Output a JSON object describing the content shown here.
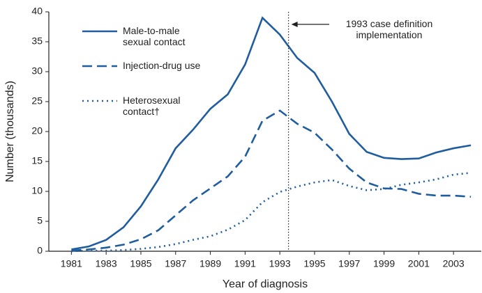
{
  "chart_data": {
    "type": "line",
    "x_label": "Year of diagnosis",
    "y_label": "Number (thousands)",
    "x": [
      1981,
      1982,
      1983,
      1984,
      1985,
      1986,
      1987,
      1988,
      1989,
      1990,
      1991,
      1992,
      1993,
      1994,
      1995,
      1996,
      1997,
      1998,
      1999,
      2000,
      2001,
      2002,
      2003,
      2004
    ],
    "series": [
      {
        "name": "Male-to-male sexual contact",
        "color": "#1f5d9e",
        "dash": "solid",
        "values": [
          0.3,
          0.8,
          1.9,
          4.0,
          7.5,
          12,
          17.2,
          20.3,
          23.8,
          26.2,
          31.2,
          39,
          36.2,
          32.3,
          29.8,
          25,
          19.6,
          16.6,
          15.6,
          15.4,
          15.5,
          16.5,
          17.2,
          17.7
        ]
      },
      {
        "name": "Injection-drug use",
        "color": "#1f5d9e",
        "dash": "dashed",
        "values": [
          0.1,
          0.3,
          0.6,
          1.1,
          2.0,
          3.5,
          6.0,
          8.5,
          10.5,
          12.5,
          15.8,
          21.8,
          23.5,
          21.3,
          19.8,
          17,
          13.8,
          11.5,
          10.5,
          10.4,
          9.6,
          9.3,
          9.3,
          9.1
        ]
      },
      {
        "name": "Heterosexual contact†",
        "color": "#1f5d9e",
        "dash": "dotted",
        "values": [
          0,
          0.1,
          0.1,
          0.2,
          0.4,
          0.7,
          1.2,
          1.9,
          2.5,
          3.6,
          5.2,
          8.2,
          9.9,
          10.8,
          11.5,
          11.9,
          10.9,
          10.2,
          10.4,
          11.1,
          11.5,
          12,
          12.8,
          13.1
        ]
      }
    ],
    "xlim": [
      1979.7,
      2004.6
    ],
    "ylim": [
      0,
      40
    ],
    "xticks": [
      1981,
      1983,
      1985,
      1987,
      1989,
      1991,
      1993,
      1995,
      1997,
      1999,
      2001,
      2003
    ],
    "yticks": [
      0,
      5,
      10,
      15,
      20,
      25,
      30,
      35,
      40
    ],
    "annotation": {
      "text": "1993 case definition implementation",
      "x": 1993.5
    },
    "legend": "upper left"
  }
}
